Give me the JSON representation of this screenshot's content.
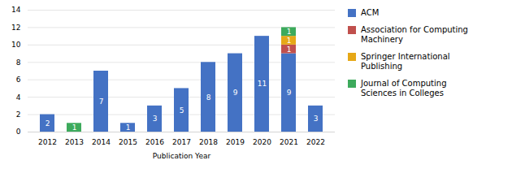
{
  "chart_data": {
    "type": "bar",
    "stacked": true,
    "xlabel": "Publication Year",
    "categories": [
      "2012",
      "2013",
      "2014",
      "2015",
      "2016",
      "2017",
      "2018",
      "2019",
      "2020",
      "2021",
      "2022"
    ],
    "series": [
      {
        "name": "ACM",
        "color": "#4472C4",
        "values": [
          2,
          0,
          7,
          1,
          3,
          5,
          8,
          9,
          11,
          9,
          3
        ]
      },
      {
        "name": "Association for Computing\nMachinery",
        "color": "#C0504D",
        "values": [
          0,
          0,
          0,
          0,
          0,
          0,
          0,
          0,
          0,
          1,
          0
        ]
      },
      {
        "name": "Springer International\nPublishing",
        "color": "#E6A817",
        "values": [
          0,
          0,
          0,
          0,
          0,
          0,
          0,
          0,
          0,
          1,
          0
        ]
      },
      {
        "name": "Journal of Computing\nSciences in Colleges",
        "color": "#3DAA5C",
        "values": [
          0,
          1,
          0,
          0,
          0,
          0,
          0,
          0,
          0,
          1,
          0
        ]
      }
    ],
    "ylim": [
      0,
      14
    ],
    "yticks": [
      0,
      2,
      4,
      6,
      8,
      10,
      12,
      14
    ],
    "grid": true,
    "legend": "right",
    "data_labels": true
  }
}
